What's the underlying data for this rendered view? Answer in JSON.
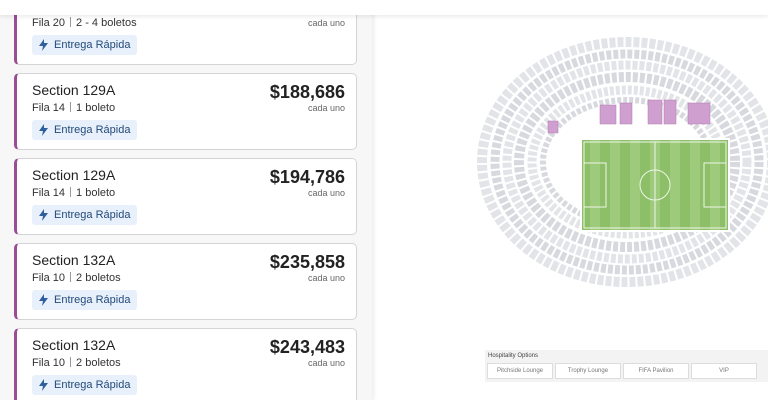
{
  "listings": [
    {
      "row": "Fila 20",
      "tickets": "2 - 4 boletos",
      "price_note": "cada uno",
      "badge": "Entrega Rápida"
    },
    {
      "section": "Section 129A",
      "price": "$188,686",
      "row": "Fila 14",
      "tickets": "1 boleto",
      "price_note": "cada uno",
      "badge": "Entrega Rápida"
    },
    {
      "section": "Section 129A",
      "price": "$194,786",
      "row": "Fila 14",
      "tickets": "1 boleto",
      "price_note": "cada uno",
      "badge": "Entrega Rápida"
    },
    {
      "section": "Section 132A",
      "price": "$235,858",
      "row": "Fila 10",
      "tickets": "2 boletos",
      "price_note": "cada uno",
      "badge": "Entrega Rápida"
    },
    {
      "section": "Section 132A",
      "price": "$243,483",
      "row": "Fila 10",
      "tickets": "2 boletos",
      "price_note": "cada uno",
      "badge": "Entrega Rápida"
    }
  ],
  "hospitality": {
    "title": "Hospitality Options",
    "options": [
      "Pitchside Lounge",
      "Trophy Lounge",
      "FIFA Pavilion",
      "VIP"
    ]
  }
}
